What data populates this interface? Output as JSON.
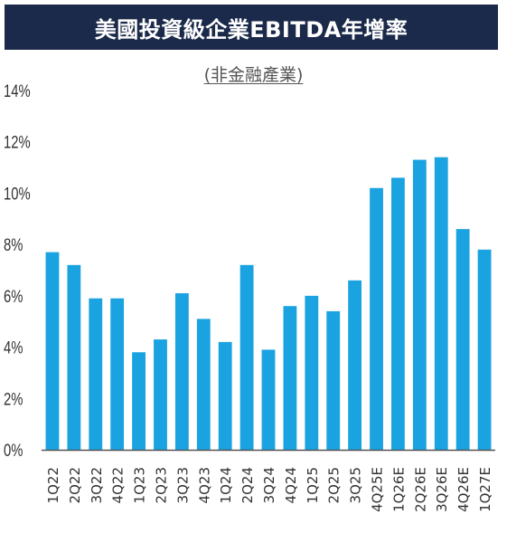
{
  "colors": {
    "header_bg": "#1b2a4a",
    "bar": "#1aa3e0",
    "axis": "#555555"
  },
  "chart_data": {
    "type": "bar",
    "title": "美國投資級企業EBITDA年增率",
    "subtitle": "(非金融產業)",
    "categories": [
      "1Q22",
      "2Q22",
      "3Q22",
      "4Q22",
      "1Q23",
      "2Q23",
      "3Q23",
      "4Q23",
      "1Q24",
      "2Q24",
      "3Q24",
      "4Q24",
      "1Q25",
      "2Q25",
      "3Q25",
      "4Q25E",
      "1Q26E",
      "2Q26E",
      "3Q26E",
      "4Q26E",
      "1Q27E"
    ],
    "values": [
      7.7,
      7.2,
      5.9,
      5.9,
      3.8,
      4.3,
      6.1,
      5.1,
      4.2,
      7.2,
      3.9,
      5.6,
      6.0,
      5.4,
      6.6,
      10.2,
      10.6,
      11.3,
      11.4,
      8.6,
      7.8
    ],
    "yticks": [
      "0%",
      "2%",
      "4%",
      "6%",
      "8%",
      "10%",
      "12%",
      "14%"
    ],
    "ylim": [
      0,
      14
    ],
    "xlabel": "",
    "ylabel": "",
    "grid": false
  }
}
